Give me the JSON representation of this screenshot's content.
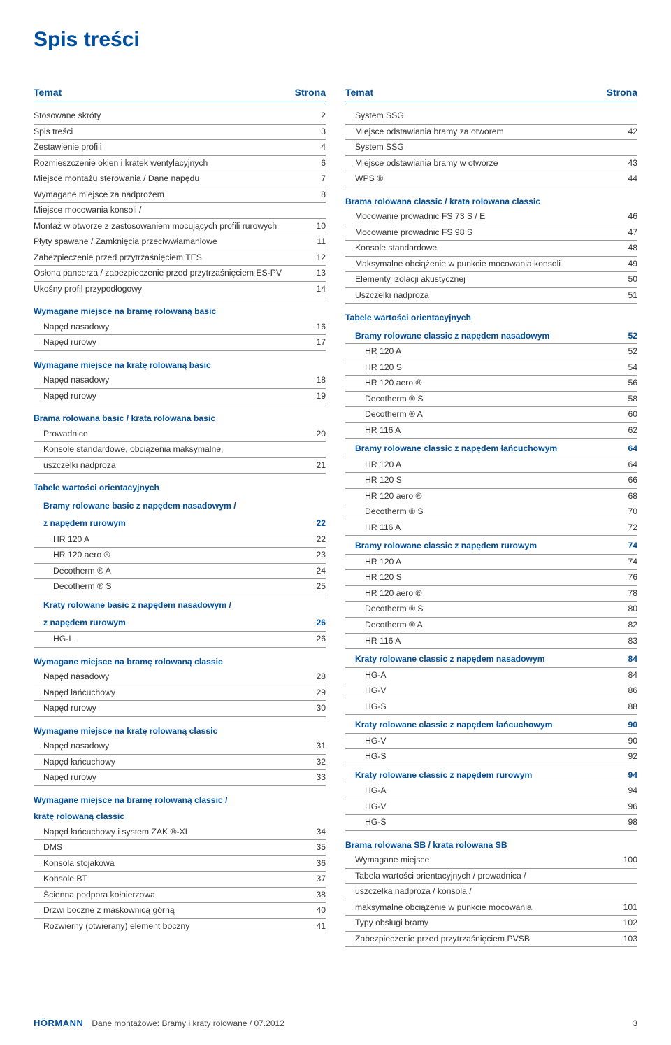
{
  "page_title": "Spis treści",
  "header": {
    "topic": "Temat",
    "page": "Strona"
  },
  "left": [
    {
      "t": "row",
      "label": "Stosowane skróty",
      "num": "2"
    },
    {
      "t": "row",
      "label": "Spis treści",
      "num": "3"
    },
    {
      "t": "row",
      "label": "Zestawienie profili",
      "num": "4"
    },
    {
      "t": "row",
      "label": "Rozmieszczenie okien i kratek wentylacyjnych",
      "num": "6"
    },
    {
      "t": "row",
      "label": "Miejsce montażu sterowania / Dane napędu",
      "num": "7"
    },
    {
      "t": "row",
      "label": "Wymagane miejsce za nadprożem",
      "num": "8"
    },
    {
      "t": "row",
      "label": "Miejsce mocowania konsoli /",
      "num": ""
    },
    {
      "t": "row",
      "label": "Montaż w otworze z zastosowaniem mocujących profili rurowych",
      "num": "10"
    },
    {
      "t": "row",
      "label": "Płyty spawane / Zamknięcia przeciwwłamaniowe",
      "num": "11"
    },
    {
      "t": "row",
      "label": "Zabezpieczenie przed przytrzaśnięciem TES",
      "num": "12"
    },
    {
      "t": "row",
      "label": "Osłona pancerza / zabezpieczenie przed przytrzaśnięciem ES-PV",
      "num": "13"
    },
    {
      "t": "row",
      "label": "Ukośny profil przypodłogowy",
      "num": "14"
    },
    {
      "t": "bold",
      "label": "Wymagane miejsce na bramę rolowaną basic",
      "num": ""
    },
    {
      "t": "row",
      "indent": 1,
      "label": "Napęd nasadowy",
      "num": "16"
    },
    {
      "t": "row",
      "indent": 1,
      "label": "Napęd rurowy",
      "num": "17"
    },
    {
      "t": "bold",
      "label": "Wymagane miejsce na kratę rolowaną basic",
      "num": ""
    },
    {
      "t": "row",
      "indent": 1,
      "label": "Napęd nasadowy",
      "num": "18"
    },
    {
      "t": "row",
      "indent": 1,
      "label": "Napęd rurowy",
      "num": "19"
    },
    {
      "t": "bold",
      "label": "Brama rolowana basic / krata rolowana basic",
      "num": ""
    },
    {
      "t": "row",
      "indent": 1,
      "label": "Prowadnice",
      "num": "20"
    },
    {
      "t": "row",
      "indent": 1,
      "label": "Konsole standardowe, obciążenia maksymalne,",
      "num": ""
    },
    {
      "t": "row",
      "indent": 1,
      "label": "uszczelki nadproża",
      "num": "21"
    },
    {
      "t": "bold",
      "label": "Tabele wartości orientacyjnych",
      "num": ""
    },
    {
      "t": "subbold",
      "label": "Bramy rolowane basic z napędem nasadowym /",
      "num": ""
    },
    {
      "t": "subbold",
      "nogap": true,
      "underline": true,
      "label": "z napędem rurowym",
      "num": "22"
    },
    {
      "t": "row",
      "indent": 2,
      "label": "HR 120 A",
      "num": "22"
    },
    {
      "t": "row",
      "indent": 2,
      "label": "HR 120 aero ®",
      "num": "23"
    },
    {
      "t": "row",
      "indent": 2,
      "label": "Decotherm ® A",
      "num": "24"
    },
    {
      "t": "row",
      "indent": 2,
      "label": "Decotherm ® S",
      "num": "25"
    },
    {
      "t": "subbold",
      "label": "Kraty rolowane basic z napędem nasadowym /",
      "num": ""
    },
    {
      "t": "subbold",
      "nogap": true,
      "underline": true,
      "label": "z napędem rurowym",
      "num": "26"
    },
    {
      "t": "row",
      "indent": 2,
      "label": "HG-L",
      "num": "26"
    },
    {
      "t": "bold",
      "label": "Wymagane miejsce na bramę rolowaną classic",
      "num": ""
    },
    {
      "t": "row",
      "indent": 1,
      "label": "Napęd nasadowy",
      "num": "28"
    },
    {
      "t": "row",
      "indent": 1,
      "label": "Napęd łańcuchowy",
      "num": "29"
    },
    {
      "t": "row",
      "indent": 1,
      "label": "Napęd rurowy",
      "num": "30"
    },
    {
      "t": "bold",
      "label": "Wymagane miejsce na kratę rolowaną classic",
      "num": ""
    },
    {
      "t": "row",
      "indent": 1,
      "label": "Napęd nasadowy",
      "num": "31"
    },
    {
      "t": "row",
      "indent": 1,
      "label": "Napęd łańcuchowy",
      "num": "32"
    },
    {
      "t": "row",
      "indent": 1,
      "label": "Napęd rurowy",
      "num": "33"
    },
    {
      "t": "bold",
      "label": "Wymagane miejsce na bramę rolowaną classic /",
      "num": ""
    },
    {
      "t": "bold",
      "nogap": true,
      "label": "kratę rolowaną classic",
      "num": ""
    },
    {
      "t": "row",
      "indent": 1,
      "label": "Napęd łańcuchowy i system ZAK ®-XL",
      "num": "34"
    },
    {
      "t": "row",
      "indent": 1,
      "label": "DMS",
      "num": "35"
    },
    {
      "t": "row",
      "indent": 1,
      "label": "Konsola stojakowa",
      "num": "36"
    },
    {
      "t": "row",
      "indent": 1,
      "label": "Konsole BT",
      "num": "37"
    },
    {
      "t": "row",
      "indent": 1,
      "label": "Ścienna podpora kołnierzowa",
      "num": "38"
    },
    {
      "t": "row",
      "indent": 1,
      "label": "Drzwi boczne z maskownicą górną",
      "num": "40"
    },
    {
      "t": "row",
      "indent": 1,
      "label": "Rozwierny (otwierany) element boczny",
      "num": "41"
    }
  ],
  "right": [
    {
      "t": "row",
      "indent": 1,
      "label": "System SSG",
      "num": ""
    },
    {
      "t": "row",
      "indent": 1,
      "label": "Miejsce odstawiania bramy za otworem",
      "num": "42"
    },
    {
      "t": "row",
      "indent": 1,
      "label": "System SSG",
      "num": ""
    },
    {
      "t": "row",
      "indent": 1,
      "label": "Miejsce odstawiania bramy w otworze",
      "num": "43"
    },
    {
      "t": "row",
      "indent": 1,
      "label": "WPS ®",
      "num": "44"
    },
    {
      "t": "bold",
      "label": "Brama rolowana classic / krata rolowana classic",
      "num": ""
    },
    {
      "t": "row",
      "indent": 1,
      "label": "Mocowanie prowadnic FS 73 S / E",
      "num": "46"
    },
    {
      "t": "row",
      "indent": 1,
      "label": "Mocowanie prowadnic FS 98 S",
      "num": "47"
    },
    {
      "t": "row",
      "indent": 1,
      "label": "Konsole standardowe",
      "num": "48"
    },
    {
      "t": "row",
      "indent": 1,
      "label": "Maksymalne obciążenie w punkcie mocowania konsoli",
      "num": "49"
    },
    {
      "t": "row",
      "indent": 1,
      "label": "Elementy izolacji akustycznej",
      "num": "50"
    },
    {
      "t": "row",
      "indent": 1,
      "label": "Uszczelki nadproża",
      "num": "51"
    },
    {
      "t": "bold",
      "label": "Tabele wartości orientacyjnych",
      "num": ""
    },
    {
      "t": "subbold",
      "underline": true,
      "label": "Bramy rolowane classic z napędem nasadowym",
      "num": "52"
    },
    {
      "t": "row",
      "indent": 2,
      "label": "HR 120 A",
      "num": "52"
    },
    {
      "t": "row",
      "indent": 2,
      "label": "HR 120 S",
      "num": "54"
    },
    {
      "t": "row",
      "indent": 2,
      "label": "HR 120 aero ®",
      "num": "56"
    },
    {
      "t": "row",
      "indent": 2,
      "label": "Decotherm ® S",
      "num": "58"
    },
    {
      "t": "row",
      "indent": 2,
      "label": "Decotherm ® A",
      "num": "60"
    },
    {
      "t": "row",
      "indent": 2,
      "label": "HR 116 A",
      "num": "62"
    },
    {
      "t": "subbold",
      "underline": true,
      "label": "Bramy rolowane classic z napędem łańcuchowym",
      "num": "64"
    },
    {
      "t": "row",
      "indent": 2,
      "label": "HR 120 A",
      "num": "64"
    },
    {
      "t": "row",
      "indent": 2,
      "label": "HR 120 S",
      "num": "66"
    },
    {
      "t": "row",
      "indent": 2,
      "label": "HR 120 aero ®",
      "num": "68"
    },
    {
      "t": "row",
      "indent": 2,
      "label": "Decotherm ® S",
      "num": "70"
    },
    {
      "t": "row",
      "indent": 2,
      "label": "HR 116 A",
      "num": "72"
    },
    {
      "t": "subbold",
      "underline": true,
      "label": "Bramy rolowane classic z napędem rurowym",
      "num": "74"
    },
    {
      "t": "row",
      "indent": 2,
      "label": "HR 120 A",
      "num": "74"
    },
    {
      "t": "row",
      "indent": 2,
      "label": "HR 120 S",
      "num": "76"
    },
    {
      "t": "row",
      "indent": 2,
      "label": "HR 120 aero ®",
      "num": "78"
    },
    {
      "t": "row",
      "indent": 2,
      "label": "Decotherm ® S",
      "num": "80"
    },
    {
      "t": "row",
      "indent": 2,
      "label": "Decotherm ® A",
      "num": "82"
    },
    {
      "t": "row",
      "indent": 2,
      "label": "HR 116 A",
      "num": "83"
    },
    {
      "t": "subbold",
      "underline": true,
      "label": "Kraty rolowane classic z napędem nasadowym",
      "num": "84"
    },
    {
      "t": "row",
      "indent": 2,
      "label": "HG-A",
      "num": "84"
    },
    {
      "t": "row",
      "indent": 2,
      "label": "HG-V",
      "num": "86"
    },
    {
      "t": "row",
      "indent": 2,
      "label": "HG-S",
      "num": "88"
    },
    {
      "t": "subbold",
      "underline": true,
      "label": "Kraty rolowane classic z napędem łańcuchowym",
      "num": "90"
    },
    {
      "t": "row",
      "indent": 2,
      "label": "HG-V",
      "num": "90"
    },
    {
      "t": "row",
      "indent": 2,
      "label": "HG-S",
      "num": "92"
    },
    {
      "t": "subbold",
      "underline": true,
      "label": "Kraty rolowane classic z napędem rurowym",
      "num": "94"
    },
    {
      "t": "row",
      "indent": 2,
      "label": "HG-A",
      "num": "94"
    },
    {
      "t": "row",
      "indent": 2,
      "label": "HG-V",
      "num": "96"
    },
    {
      "t": "row",
      "indent": 2,
      "label": "HG-S",
      "num": "98"
    },
    {
      "t": "bold",
      "label": "Brama rolowana SB / krata rolowana SB",
      "num": ""
    },
    {
      "t": "row",
      "indent": 1,
      "label": "Wymagane miejsce",
      "num": "100"
    },
    {
      "t": "row",
      "indent": 1,
      "label": "Tabela wartości orientacyjnych / prowadnica /",
      "num": ""
    },
    {
      "t": "row",
      "indent": 1,
      "label": "uszczelka nadproża / konsola /",
      "num": ""
    },
    {
      "t": "row",
      "indent": 1,
      "label": "maksymalne obciążenie w punkcie mocowania",
      "num": "101"
    },
    {
      "t": "row",
      "indent": 1,
      "label": "Typy obsługi bramy",
      "num": "102"
    },
    {
      "t": "row",
      "indent": 1,
      "label": "Zabezpieczenie przed przytrzaśnięciem PVSB",
      "num": "103"
    }
  ],
  "footer": {
    "logo": "HÖRMANN",
    "text": "Dane montażowe: Bramy i kraty rolowane / 07.2012",
    "page": "3"
  }
}
